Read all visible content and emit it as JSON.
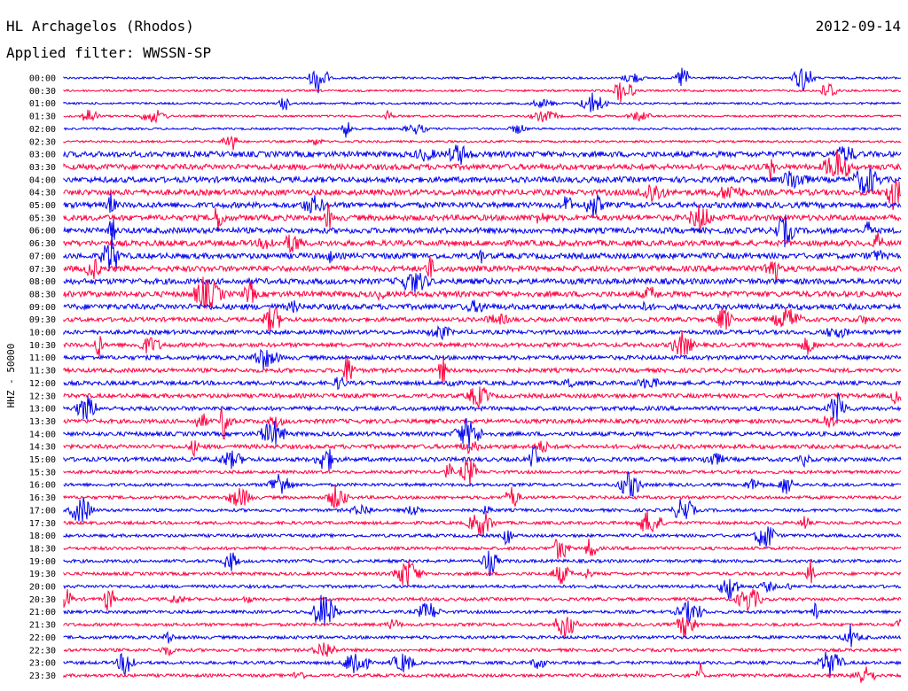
{
  "chart_data": {
    "type": "line",
    "title": "HL Archagelos (Rhodos)",
    "date": "2012-09-14",
    "filter_label": "Applied filter: WWSSN-SP",
    "ylabel": "HHZ - 50000",
    "colors": [
      "#0000ee",
      "#ff0040"
    ],
    "rows": [
      "00:00",
      "00:30",
      "01:00",
      "01:30",
      "02:00",
      "02:30",
      "03:00",
      "03:30",
      "04:00",
      "04:30",
      "05:00",
      "05:30",
      "06:00",
      "06:30",
      "07:00",
      "07:30",
      "08:00",
      "08:30",
      "09:00",
      "09:30",
      "10:00",
      "10:30",
      "11:00",
      "11:30",
      "12:00",
      "12:30",
      "13:00",
      "13:30",
      "14:00",
      "14:30",
      "15:00",
      "15:30",
      "16:00",
      "16:30",
      "17:00",
      "17:30",
      "18:00",
      "18:30",
      "19:00",
      "19:30",
      "20:00",
      "20:30",
      "21:00",
      "21:30",
      "22:00",
      "22:30",
      "23:00",
      "23:30"
    ]
  }
}
